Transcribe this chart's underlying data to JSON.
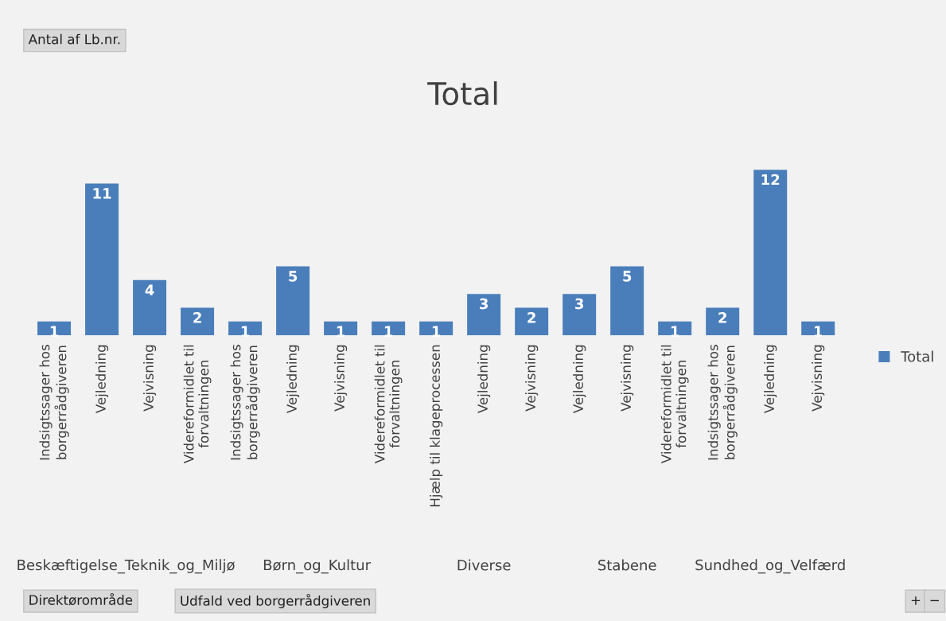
{
  "chart_data": {
    "type": "bar",
    "title": "Total",
    "categories": [
      "Indsigtssager hos\nborgerrådgiveren",
      "Vejledning",
      "Vejvisning",
      "Videreformidlet til\nforvaltningen",
      "Indsigtssager hos\nborgerrådgiveren",
      "Vejledning",
      "Vejvisning",
      "Videreformidlet til\nforvaltningen",
      "Hjælp til klageprocessen",
      "Vejledning",
      "Vejvisning",
      "Vejledning",
      "Vejvisning",
      "Videreformidlet til\nforvaltningen",
      "Indsigtssager hos\nborgerrådgiveren",
      "Vejledning",
      "Vejvisning"
    ],
    "series": [
      {
        "name": "Total",
        "color": "#4a7ebb",
        "values": [
          1,
          11,
          4,
          2,
          1,
          5,
          1,
          1,
          1,
          3,
          2,
          3,
          5,
          1,
          2,
          12,
          1
        ]
      }
    ],
    "data_labels": true,
    "legend": "right",
    "grid": false,
    "annotations": [
      "Beskæftigelse_Teknik_og_Miljø",
      "Børn_og_Kultur",
      "Diverse",
      "Stabene",
      "Sundhed_og_Velfærd",
      "Antal af Lb.nr.",
      "Direktørområde",
      "Udfald ved borgerrådgiveren",
      "+",
      "−"
    ]
  }
}
